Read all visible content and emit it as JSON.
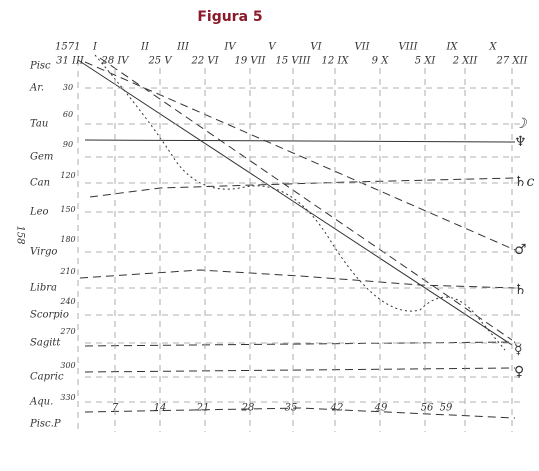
{
  "title": "Figura 5",
  "page_number": "158",
  "year": "1571",
  "months": [
    "I",
    "II",
    "III",
    "IV",
    "V",
    "VI",
    "VII",
    "VIII",
    "IX",
    "X"
  ],
  "dates": [
    "31 III",
    "28 IV",
    "25 V",
    "22 VI",
    "19 VII",
    "15 VIII",
    "12 IX",
    "9 X",
    "5 XI",
    "2 XII",
    "27 XII"
  ],
  "signs": [
    "Pisc",
    "Ar.",
    "Tau",
    "Gem",
    "Can",
    "Leo",
    "Virgo",
    "Libra",
    "Scorpio",
    "Sagitt",
    "Capric",
    "Aqu.",
    "Pisc.P"
  ],
  "degrees": [
    "30",
    "60",
    "90",
    "120",
    "150",
    "180",
    "210",
    "240",
    "270",
    "300",
    "330"
  ],
  "days": [
    "7",
    "14",
    "21",
    "28",
    "35",
    "42",
    "49",
    "56",
    "59"
  ],
  "right_symbols": [
    "☽",
    "♆",
    "♄c",
    "♂",
    "♄",
    "☿",
    "♀"
  ]
}
